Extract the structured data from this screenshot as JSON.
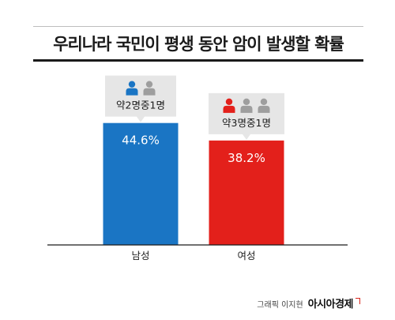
{
  "chart_data": {
    "type": "bar",
    "title": "우리나라 국민이 평생 동안 암이 발생할 확률",
    "categories": [
      "남성",
      "여성"
    ],
    "values": [
      44.6,
      38.2
    ],
    "value_labels": [
      "44.6%",
      "38.2%"
    ],
    "bar_colors": [
      "#1a75c4",
      "#e3201b"
    ],
    "ylim": [
      0,
      50
    ],
    "grid": false,
    "callouts": [
      {
        "text": "약2명중1명",
        "highlighted_icons": 1,
        "total_icons": 2,
        "highlight_color": "#1a75c4"
      },
      {
        "text": "약3명중1명",
        "highlighted_icons": 1,
        "total_icons": 3,
        "highlight_color": "#e3201b"
      }
    ]
  },
  "colors": {
    "icon_gray": "#9e9e9e",
    "callout_bg": "#e6e6e6"
  },
  "credit": {
    "author": "그래픽 이지현",
    "brand": "아시아경제"
  }
}
